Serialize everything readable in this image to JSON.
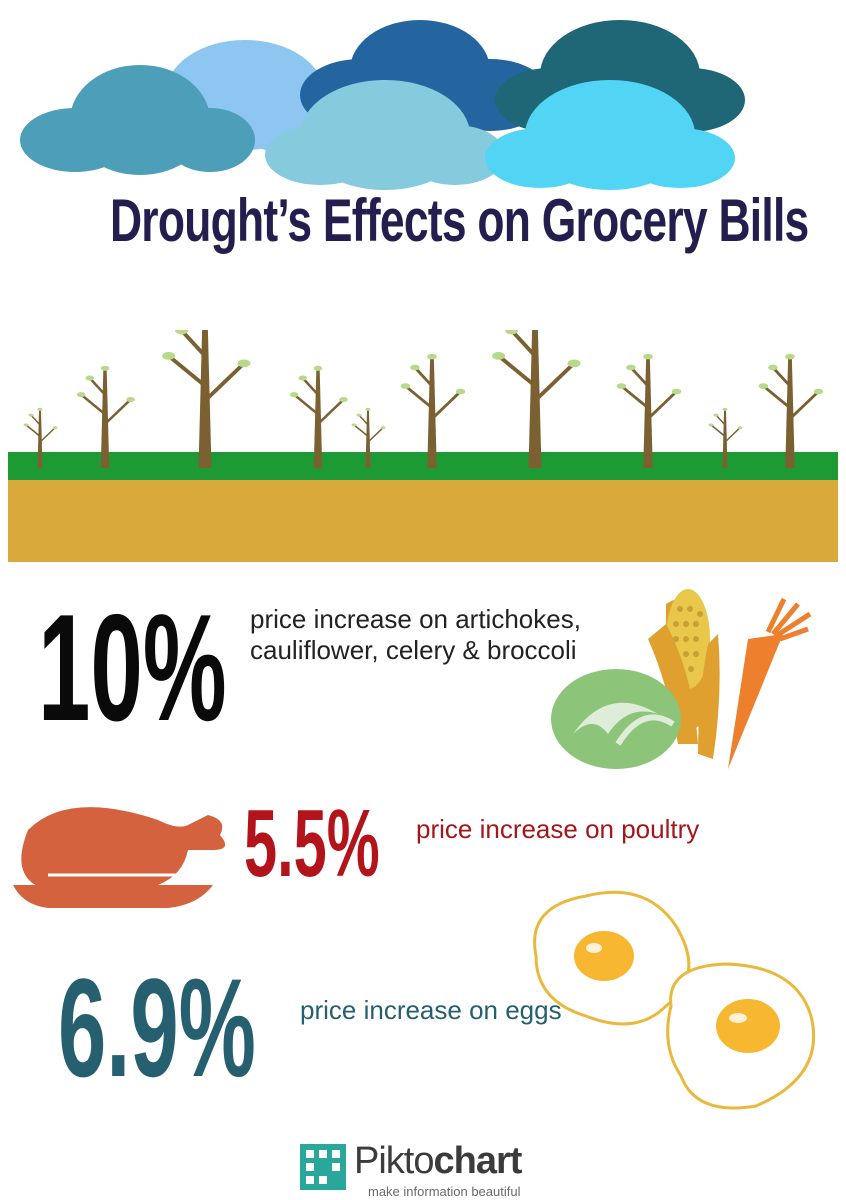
{
  "title": "Drought’s Effects on Grocery Bills",
  "stats": [
    {
      "value": "10%",
      "description": "price increase on artichokes, cauliflower, celery & broccoli",
      "color": "#0a0a0a"
    },
    {
      "value": "5.5%",
      "description": "price increase on poultry",
      "color": "#b3141b"
    },
    {
      "value": "6.9%",
      "description": "price increase on eggs",
      "color": "#265f6f"
    }
  ],
  "icons": [
    "cloud-icon",
    "tree-icon",
    "vegetables-icon",
    "roast-chicken-icon",
    "fried-egg-icon",
    "piktochart-logo-icon"
  ],
  "colors": {
    "title": "#241e4e",
    "grass": "#1e9a34",
    "soil": "#d9a93b",
    "tree": "#7b6132"
  },
  "logo": {
    "brand_light": "Pikto",
    "brand_bold": "chart",
    "tagline": "make information beautiful"
  }
}
